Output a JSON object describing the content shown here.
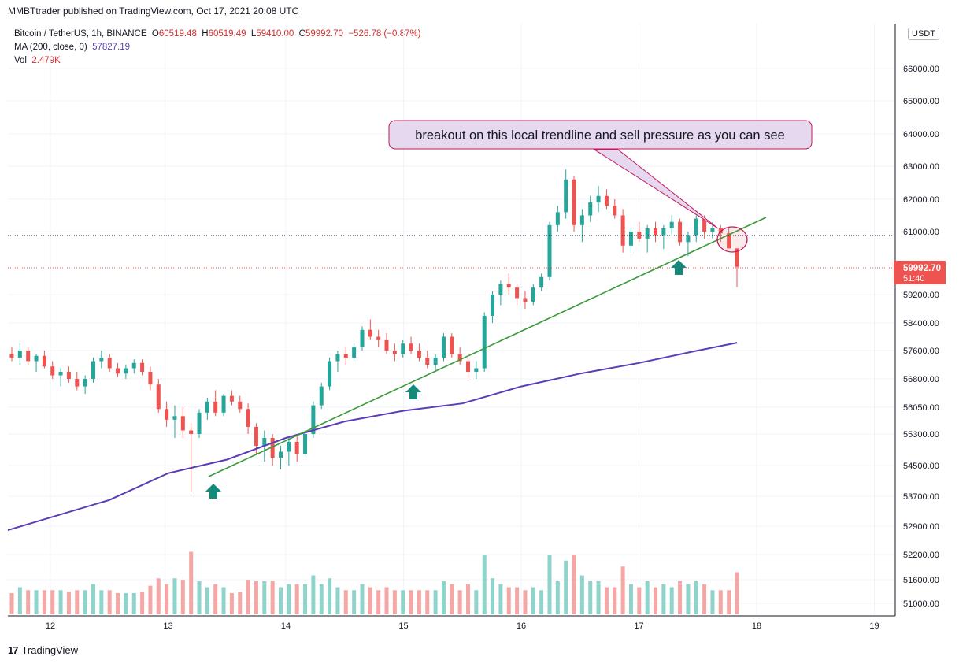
{
  "header": {
    "published": "MMBTtrader published on TradingView.com, Oct 17, 2021 20:08 UTC"
  },
  "legend": {
    "symbol": "Bitcoin / TetherUS, 1h, BINANCE",
    "o_label": "O",
    "o": "60519.48",
    "h_label": "H",
    "h": "60519.49",
    "l_label": "L",
    "l": "59410.00",
    "c_label": "C",
    "c": "59992.70",
    "change": "−526.78 (−0.87%)",
    "ma_label": "MA (200, close, 0)",
    "ma_value": "57827.19",
    "vol_label": "Vol",
    "vol_value": "2.479K"
  },
  "currency_badge": "USDT",
  "price_tag": {
    "price": "59992.70",
    "countdown": "51:40"
  },
  "annotation": "breakout on this local trendline and sell pressure as you can see",
  "footer": {
    "brand": "TradingView"
  },
  "colors": {
    "up": "#26a69a",
    "down": "#ef5350",
    "ma": "#5b3db5",
    "trendline": "#3a9a3a",
    "vol_up": "#8fd4cb",
    "vol_down": "#f4a7a5",
    "callout_bg": "#e6d9ef",
    "callout_border": "#c2185b"
  },
  "chart_data": {
    "type": "candlestick",
    "y_axis_ticks": [
      "66000.00",
      "65000.00",
      "64000.00",
      "63000.00",
      "62000.00",
      "61000.00",
      "59200.00",
      "58400.00",
      "57600.00",
      "56800.00",
      "56050.00",
      "55300.00",
      "54500.00",
      "53700.00",
      "52900.00",
      "52200.00",
      "51600.00",
      "51000.00"
    ],
    "x_axis_ticks": [
      "12",
      "13",
      "14",
      "15",
      "16",
      "17",
      "18",
      "19"
    ],
    "ma_200": [
      {
        "x": "11T23",
        "y": 52800
      },
      {
        "x": "12T12",
        "y": 53600
      },
      {
        "x": "13T00",
        "y": 54300
      },
      {
        "x": "13T12",
        "y": 54650
      },
      {
        "x": "14T00",
        "y": 55200
      },
      {
        "x": "14T12",
        "y": 55650
      },
      {
        "x": "15T00",
        "y": 55950
      },
      {
        "x": "15T12",
        "y": 56150
      },
      {
        "x": "16T00",
        "y": 56600
      },
      {
        "x": "16T12",
        "y": 56950
      },
      {
        "x": "17T00",
        "y": 57250
      },
      {
        "x": "17T12",
        "y": 57600
      },
      {
        "x": "17T20",
        "y": 57827
      }
    ],
    "trendline": [
      {
        "x": "13T08",
        "y": 54350
      },
      {
        "x": "17T23",
        "y": 61200
      }
    ],
    "candles": [
      [
        57500,
        57700,
        57300,
        57400
      ],
      [
        57400,
        57800,
        57200,
        57600
      ],
      [
        57600,
        57700,
        57200,
        57300
      ],
      [
        57300,
        57500,
        57000,
        57450
      ],
      [
        57450,
        57600,
        57100,
        57150
      ],
      [
        57150,
        57300,
        56800,
        56900
      ],
      [
        56900,
        57100,
        56600,
        57000
      ],
      [
        57000,
        57150,
        56700,
        56800
      ],
      [
        56800,
        57000,
        56500,
        56600
      ],
      [
        56600,
        56900,
        56400,
        56800
      ],
      [
        56800,
        57400,
        56700,
        57300
      ],
      [
        57300,
        57600,
        57100,
        57400
      ],
      [
        57400,
        57500,
        57000,
        57100
      ],
      [
        57100,
        57250,
        56850,
        56950
      ],
      [
        56950,
        57200,
        56800,
        57100
      ],
      [
        57100,
        57350,
        56950,
        57250
      ],
      [
        57250,
        57350,
        56900,
        57000
      ],
      [
        57000,
        57150,
        56500,
        56650
      ],
      [
        56650,
        56800,
        55900,
        56000
      ],
      [
        56000,
        56200,
        55500,
        55700
      ],
      [
        55700,
        56100,
        55200,
        55800
      ],
      [
        55800,
        56050,
        55200,
        55400
      ],
      [
        55400,
        55600,
        53800,
        55300
      ],
      [
        55300,
        56000,
        55200,
        55900
      ],
      [
        55900,
        56300,
        55700,
        56200
      ],
      [
        56200,
        56500,
        55800,
        55900
      ],
      [
        55900,
        56400,
        55800,
        56350
      ],
      [
        56350,
        56500,
        56100,
        56200
      ],
      [
        56200,
        56350,
        55900,
        56000
      ],
      [
        56000,
        56150,
        55300,
        55500
      ],
      [
        55500,
        55600,
        54800,
        55000
      ],
      [
        55000,
        55400,
        54600,
        55200
      ],
      [
        55200,
        55300,
        54500,
        54700
      ],
      [
        54700,
        55000,
        54400,
        54850
      ],
      [
        54850,
        55200,
        54500,
        55100
      ],
      [
        55100,
        55300,
        54600,
        54800
      ],
      [
        54800,
        55400,
        54700,
        55300
      ],
      [
        55300,
        56200,
        55200,
        56100
      ],
      [
        56100,
        56700,
        56000,
        56600
      ],
      [
        56600,
        57400,
        56500,
        57300
      ],
      [
        57300,
        57600,
        57000,
        57500
      ],
      [
        57500,
        57700,
        57200,
        57400
      ],
      [
        57400,
        57800,
        57300,
        57700
      ],
      [
        57700,
        58300,
        57600,
        58200
      ],
      [
        58200,
        58500,
        57900,
        58000
      ],
      [
        58000,
        58200,
        57700,
        57900
      ],
      [
        57900,
        58100,
        57500,
        57600
      ],
      [
        57600,
        57800,
        57300,
        57500
      ],
      [
        57500,
        57900,
        57400,
        57800
      ],
      [
        57800,
        58000,
        57500,
        57600
      ],
      [
        57600,
        57800,
        57300,
        57400
      ],
      [
        57400,
        57600,
        57100,
        57200
      ],
      [
        57200,
        57500,
        57000,
        57400
      ],
      [
        57400,
        58100,
        57300,
        58000
      ],
      [
        58000,
        58100,
        57400,
        57500
      ],
      [
        57500,
        57700,
        57200,
        57300
      ],
      [
        57300,
        57500,
        56800,
        57000
      ],
      [
        57000,
        57300,
        56800,
        57100
      ],
      [
        57100,
        58700,
        57000,
        58600
      ],
      [
        58600,
        59300,
        58400,
        59200
      ],
      [
        59200,
        59600,
        58900,
        59500
      ],
      [
        59500,
        59800,
        59200,
        59400
      ],
      [
        59400,
        59500,
        58900,
        59100
      ],
      [
        59100,
        59300,
        58800,
        59000
      ],
      [
        59000,
        59500,
        58900,
        59400
      ],
      [
        59400,
        59800,
        59300,
        59700
      ],
      [
        59700,
        61300,
        59600,
        61200
      ],
      [
        61200,
        61800,
        61000,
        61600
      ],
      [
        61600,
        62900,
        61400,
        62600
      ],
      [
        62600,
        62700,
        61000,
        61200
      ],
      [
        61200,
        61700,
        60700,
        61500
      ],
      [
        61500,
        62100,
        61300,
        61900
      ],
      [
        61900,
        62400,
        61600,
        62100
      ],
      [
        62100,
        62300,
        61700,
        61800
      ],
      [
        61800,
        62000,
        61400,
        61500
      ],
      [
        61500,
        61700,
        60400,
        60600
      ],
      [
        60600,
        61100,
        60400,
        61000
      ],
      [
        61000,
        61300,
        60700,
        60800
      ],
      [
        60800,
        61200,
        60400,
        61100
      ],
      [
        61100,
        61300,
        60700,
        60900
      ],
      [
        60900,
        61200,
        60500,
        61100
      ],
      [
        61100,
        61500,
        60900,
        61300
      ],
      [
        61300,
        61400,
        60600,
        60700
      ],
      [
        60700,
        61000,
        60300,
        60900
      ],
      [
        60900,
        61500,
        60700,
        61400
      ],
      [
        61400,
        61500,
        60800,
        61000
      ],
      [
        61000,
        61300,
        60800,
        61100
      ],
      [
        61100,
        61200,
        60700,
        60950
      ],
      [
        60950,
        61100,
        60600,
        60519
      ],
      [
        60519,
        60519,
        59410,
        59992
      ]
    ],
    "volume_up_ratio": "green for up candles, red for down candles"
  }
}
